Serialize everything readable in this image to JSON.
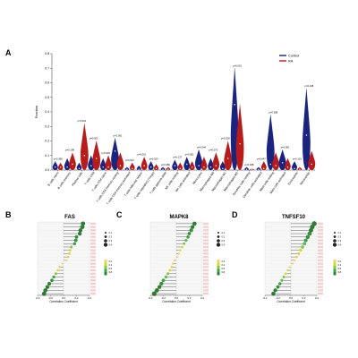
{
  "panels": {
    "a": {
      "letter": "A"
    },
    "b": {
      "letter": "B",
      "title": "FAS"
    },
    "c": {
      "letter": "C",
      "title": "MAPK8"
    },
    "d": {
      "letter": "D",
      "title": "TNFSF10"
    }
  },
  "chart_data": [
    {
      "id": "A",
      "type": "violin",
      "ylabel": "Fraction",
      "ylim": [
        0.0,
        0.8
      ],
      "yticks": [
        "0.0",
        "0.1",
        "0.2",
        "0.3",
        "0.4",
        "0.5",
        "0.6",
        "0.7",
        "0.8"
      ],
      "legend": {
        "placement": "top-right",
        "items": [
          {
            "name": "Control",
            "color": "#1a237e"
          },
          {
            "name": "RA",
            "color": "#b71c1c"
          }
        ]
      },
      "categories": [
        "B cells naive",
        "B cells memory",
        "Plasma cells",
        "T cells CD8",
        "T cells CD4 naive",
        "T cells CD4 memory resting",
        "T cells CD4 memory activated",
        "T cells follicular helper",
        "T cells regulatory (Tregs)",
        "T cells gamma delta",
        "NK cells resting",
        "NK cells activated",
        "Monocytes",
        "Macrophages M0",
        "Macrophages M1",
        "Macrophages M2",
        "Dendritic cells resting",
        "Dendritic cells activated",
        "Mast cells resting",
        "Mast cells activated",
        "Eosinophils",
        "Neutrophils"
      ],
      "pvalues": [
        "p=0.368",
        "p=0.198",
        "p<0.001",
        "p=0.001",
        "p=0.945",
        "p<0.001",
        "p=0.012",
        "p=0.001",
        "p=0.020",
        "p=0.450",
        "p=0.137",
        "p=0.051",
        "p=0.044",
        "p=0.070",
        "p=0.528",
        "p=0.001",
        "p=0.008",
        "p=0.047",
        "p=0.388",
        "p=0.001",
        "p=0.101",
        "p=0.238"
      ],
      "series": [
        {
          "name": "Control",
          "max": [
            0.06,
            0.08,
            0.05,
            0.1,
            0.08,
            0.22,
            0.02,
            0.03,
            0.06,
            0.02,
            0.07,
            0.09,
            0.14,
            0.08,
            0.06,
            0.7,
            0.02,
            0.02,
            0.38,
            0.14,
            0.06,
            0.56
          ],
          "median": [
            0.02,
            0.02,
            0.01,
            0.03,
            0.02,
            0.13,
            0.0,
            0.0,
            0.02,
            0.0,
            0.03,
            0.04,
            0.03,
            0.02,
            0.01,
            0.45,
            0.0,
            0.0,
            0.04,
            0.05,
            0.01,
            0.24
          ]
        },
        {
          "name": "RA",
          "max": [
            0.05,
            0.12,
            0.32,
            0.2,
            0.1,
            0.12,
            0.05,
            0.09,
            0.04,
            0.02,
            0.05,
            0.06,
            0.09,
            0.12,
            0.2,
            0.45,
            0.01,
            0.06,
            0.12,
            0.08,
            0.02,
            0.13
          ],
          "median": [
            0.02,
            0.04,
            0.1,
            0.08,
            0.02,
            0.03,
            0.01,
            0.03,
            0.01,
            0.0,
            0.01,
            0.02,
            0.02,
            0.03,
            0.08,
            0.18,
            0.0,
            0.01,
            0.03,
            0.02,
            0.0,
            0.04
          ]
        }
      ]
    },
    {
      "id": "B",
      "type": "lollipop",
      "title": "FAS",
      "xlabel": "Correlation Coefficient",
      "xlim": [
        -0.4,
        0.4
      ],
      "xticks": [
        "-0.4",
        "-0.2",
        "0.0",
        "0.2",
        "0.4"
      ],
      "abs_r_legend": [
        "0.1",
        "0.2",
        "0.3",
        "0.4"
      ],
      "pvalue_legend": [
        "0.2",
        "0.4",
        "0.6",
        "0.8"
      ],
      "coefficients": [
        0.3,
        0.29,
        0.26,
        0.25,
        0.2,
        0.19,
        0.17,
        0.12,
        0.1,
        0.09,
        0.07,
        0.05,
        -0.02,
        -0.06,
        -0.09,
        -0.12,
        -0.15,
        -0.18,
        -0.22,
        -0.25,
        -0.28,
        -0.3
      ],
      "pcolors": [
        "#2e7d32",
        "#2e7d32",
        "#2e7d32",
        "#2e7d32",
        "#388e3c",
        "#388e3c",
        "#43a047",
        "#8bc34a",
        "#cddc39",
        "#e6c84a",
        "#f0c85a",
        "#f2d16b",
        "#f2d16b",
        "#e6c84a",
        "#cddc39",
        "#8bc34a",
        "#43a047",
        "#388e3c",
        "#2e7d32",
        "#2e7d32",
        "#2e7d32",
        "#2e7d32"
      ]
    },
    {
      "id": "C",
      "type": "lollipop",
      "title": "MAPK8",
      "xlabel": "Correlation Coefficient",
      "xlim": [
        -0.4,
        0.4
      ],
      "xticks": [
        "-0.4",
        "-0.2",
        "0.0",
        "0.2",
        "0.4"
      ],
      "abs_r_legend": [
        "0.1",
        "0.2",
        "0.3",
        "0.4"
      ],
      "pvalue_legend": [
        "0.2",
        "0.4",
        "0.6",
        "0.8"
      ],
      "coefficients": [
        0.28,
        0.25,
        0.23,
        0.2,
        0.18,
        0.15,
        0.12,
        0.09,
        0.06,
        0.04,
        0.02,
        -0.03,
        -0.05,
        -0.07,
        -0.1,
        -0.13,
        -0.16,
        -0.2,
        -0.23,
        -0.26,
        -0.3,
        -0.34
      ],
      "pcolors": [
        "#2e7d32",
        "#2e7d32",
        "#388e3c",
        "#388e3c",
        "#43a047",
        "#66bb6a",
        "#8bc34a",
        "#cddc39",
        "#e6c84a",
        "#f0c85a",
        "#f2d16b",
        "#f2d16b",
        "#f0c85a",
        "#e6c84a",
        "#cddc39",
        "#8bc34a",
        "#66bb6a",
        "#43a047",
        "#388e3c",
        "#2e7d32",
        "#2e7d32",
        "#2e7d32"
      ]
    },
    {
      "id": "D",
      "type": "lollipop",
      "title": "TNFSF10",
      "xlabel": "Correlation Coefficient",
      "xlim": [
        -0.4,
        0.4
      ],
      "xticks": [
        "-0.4",
        "-0.2",
        "0.0",
        "0.2",
        "0.4"
      ],
      "abs_r_legend": [
        "0.1",
        "0.2",
        "0.3",
        "0.4"
      ],
      "pvalue_legend": [
        "0.2",
        "0.4",
        "0.6",
        "0.8"
      ],
      "coefficients": [
        0.36,
        0.33,
        0.31,
        0.29,
        0.26,
        0.23,
        0.21,
        0.18,
        0.15,
        0.12,
        0.09,
        0.06,
        0.03,
        -0.02,
        -0.05,
        -0.08,
        -0.11,
        -0.14,
        -0.17,
        -0.2,
        -0.24,
        -0.27
      ],
      "pcolors": [
        "#2e7d32",
        "#2e7d32",
        "#2e7d32",
        "#388e3c",
        "#388e3c",
        "#43a047",
        "#66bb6a",
        "#8bc34a",
        "#cddc39",
        "#e6c84a",
        "#f0c85a",
        "#f2d16b",
        "#f2d16b",
        "#f0c85a",
        "#e6c84a",
        "#cddc39",
        "#8bc34a",
        "#66bb6a",
        "#43a047",
        "#388e3c",
        "#2e7d32",
        "#2e7d32"
      ]
    }
  ]
}
